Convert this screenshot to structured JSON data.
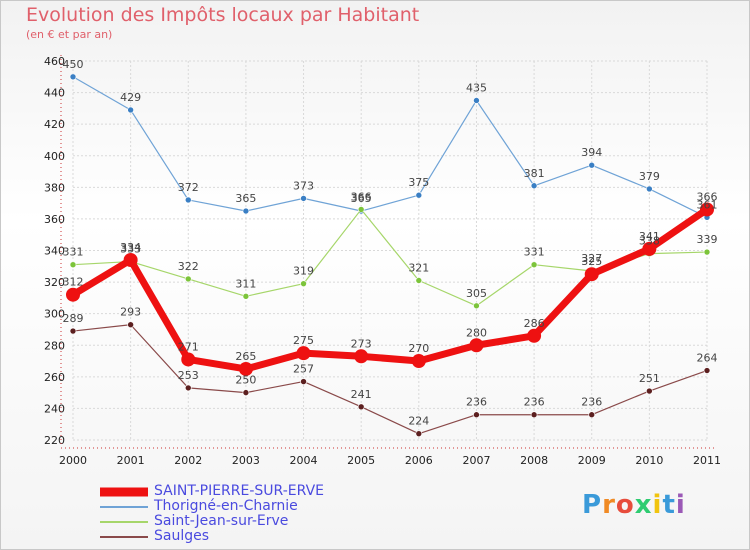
{
  "header": {
    "title": "Evolution des Impôts locaux par Habitant",
    "subtitle": "(en € et par an)"
  },
  "logo": {
    "text": "Proxiti",
    "letters": [
      "P",
      "r",
      "o",
      "x",
      "i",
      "t",
      "i"
    ],
    "colors": [
      "#3a9ad9",
      "#f08a24",
      "#e74c3c",
      "#2ecc71",
      "#f1c40f",
      "#3a9ad9",
      "#9b59b6"
    ]
  },
  "chart_data": {
    "type": "line",
    "title": "Evolution des Impôts locaux par Habitant",
    "subtitle": "(en € et par an)",
    "categories": [
      "2000",
      "2001",
      "2002",
      "2003",
      "2004",
      "2005",
      "2006",
      "2007",
      "2008",
      "2009",
      "2010",
      "2011"
    ],
    "ylim": [
      220,
      460
    ],
    "yticks": [
      220,
      240,
      260,
      280,
      300,
      320,
      340,
      360,
      380,
      400,
      420,
      440,
      460
    ],
    "grid": true,
    "legend_position": "bottom-left",
    "series": [
      {
        "name": "Thorigné-en-Charnie",
        "color": "#6fa3d6",
        "point_color": "#3a7fc4",
        "width": 1.2,
        "values": [
          450,
          429,
          372,
          365,
          373,
          365,
          375,
          435,
          381,
          394,
          379,
          361
        ],
        "labels": [
          "450",
          "429",
          "372",
          "365",
          "373",
          "365",
          "375",
          "435",
          "381",
          "394",
          "379",
          "361"
        ]
      },
      {
        "name": "Saint-Jean-sur-Erve",
        "color": "#a6d66a",
        "point_color": "#7cc43a",
        "width": 1.2,
        "values": [
          331,
          333,
          322,
          311,
          319,
          366,
          321,
          305,
          331,
          327,
          338,
          339
        ],
        "labels": [
          "331",
          "333",
          "322",
          "311",
          "319",
          "366",
          "321",
          "305",
          "331",
          "327",
          "338",
          "339"
        ]
      },
      {
        "name": "Saulges",
        "color": "#8a4a4a",
        "point_color": "#5c1f1f",
        "width": 1.2,
        "values": [
          289,
          293,
          253,
          250,
          257,
          241,
          224,
          236,
          236,
          236,
          251,
          264
        ],
        "labels": [
          "289",
          "293",
          "253",
          "250",
          "257",
          "241",
          "224",
          "236",
          "236",
          "236",
          "251",
          "264"
        ]
      },
      {
        "name": "SAINT-PIERRE-SUR-ERVE",
        "color": "#ee1111",
        "point_color": "#ee1111",
        "width": 7,
        "values": [
          312,
          334,
          271,
          265,
          275,
          273,
          270,
          280,
          286,
          325,
          341,
          366
        ],
        "labels": [
          "312",
          "334",
          "271",
          "265",
          "275",
          "273",
          "270",
          "280",
          "286",
          "325",
          "341",
          "366"
        ]
      }
    ],
    "legend": [
      {
        "name": "SAINT-PIERRE-SUR-ERVE",
        "color": "#ee1111",
        "text_color": "#4a4adf",
        "thick": true
      },
      {
        "name": "Thorigné-en-Charnie",
        "color": "#6fa3d6",
        "text_color": "#4a4adf",
        "thick": false
      },
      {
        "name": "Saint-Jean-sur-Erve",
        "color": "#a6d66a",
        "text_color": "#4a4adf",
        "thick": false
      },
      {
        "name": "Saulges",
        "color": "#8a4a4a",
        "text_color": "#4a4adf",
        "thick": false
      }
    ]
  }
}
